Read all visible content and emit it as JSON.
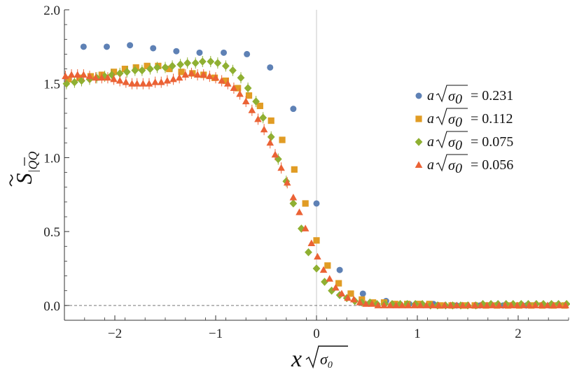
{
  "chart_data": {
    "type": "scatter",
    "title": "",
    "xlabel": "x√σ₀",
    "ylabel": "S̃|QQ̄",
    "xlim": [
      -2.5,
      2.5
    ],
    "ylim": [
      -0.1,
      2.0
    ],
    "x_ticks": [
      -2,
      -1,
      0,
      1,
      2
    ],
    "x_tick_labels": [
      "−2",
      "−1",
      "0",
      "1",
      "2"
    ],
    "y_ticks": [
      0.0,
      0.5,
      1.0,
      1.5,
      2.0
    ],
    "y_tick_labels": [
      "0.0",
      "0.5",
      "1.0",
      "1.5",
      "2.0"
    ],
    "reference_lines": {
      "horizontal_dashed_y": 0.0,
      "vertical_solid_x": 0.0
    },
    "legend_position": "right",
    "series": [
      {
        "name": "a√σ₀ = 0.231",
        "label_prefix": "a",
        "label_value": "= 0.231",
        "marker": "circle",
        "color": "#5e81b5",
        "x": [
          -2.31,
          -2.08,
          -1.85,
          -1.62,
          -1.39,
          -1.16,
          -0.92,
          -0.69,
          -0.46,
          -0.23,
          0.0,
          0.23,
          0.46,
          0.69,
          0.92,
          1.16,
          1.39,
          1.62,
          1.85,
          2.08,
          2.31
        ],
        "y": [
          1.75,
          1.75,
          1.76,
          1.74,
          1.72,
          1.71,
          1.71,
          1.7,
          1.61,
          1.33,
          0.69,
          0.24,
          0.08,
          0.03,
          0.01,
          0.01,
          0.0,
          0.0,
          0.0,
          0.0,
          0.0
        ]
      },
      {
        "name": "a√σ₀ = 0.112",
        "label_prefix": "a",
        "label_value": "= 0.112",
        "marker": "square",
        "color": "#e19c24",
        "x": [
          -2.46,
          -2.35,
          -2.24,
          -2.13,
          -2.01,
          -1.9,
          -1.79,
          -1.68,
          -1.57,
          -1.46,
          -1.34,
          -1.23,
          -1.12,
          -1.01,
          -0.9,
          -0.78,
          -0.67,
          -0.56,
          -0.45,
          -0.34,
          -0.22,
          -0.11,
          0.0,
          0.11,
          0.22,
          0.34,
          0.45,
          0.56,
          0.67,
          0.78,
          0.9,
          1.01,
          1.12,
          1.23,
          1.34,
          1.46,
          1.57,
          1.68,
          1.79,
          1.9,
          2.01,
          2.13,
          2.24,
          2.35,
          2.46
        ],
        "y": [
          1.53,
          1.54,
          1.55,
          1.56,
          1.58,
          1.6,
          1.61,
          1.62,
          1.62,
          1.6,
          1.58,
          1.57,
          1.56,
          1.54,
          1.52,
          1.47,
          1.42,
          1.35,
          1.25,
          1.12,
          0.92,
          0.69,
          0.44,
          0.27,
          0.15,
          0.08,
          0.04,
          0.02,
          0.02,
          0.01,
          0.01,
          0.01,
          0.01,
          0.0,
          0.0,
          0.0,
          0.0,
          0.0,
          0.0,
          0.0,
          0.0,
          0.0,
          0.0,
          0.0,
          0.0
        ]
      },
      {
        "name": "a√σ₀ = 0.075",
        "label_prefix": "a",
        "label_value": "= 0.075",
        "marker": "diamond",
        "color": "#8fb032",
        "x": [
          -2.48,
          -2.4,
          -2.33,
          -2.25,
          -2.18,
          -2.1,
          -2.03,
          -1.95,
          -1.88,
          -1.8,
          -1.73,
          -1.65,
          -1.58,
          -1.5,
          -1.43,
          -1.35,
          -1.28,
          -1.2,
          -1.13,
          -1.05,
          -0.98,
          -0.9,
          -0.83,
          -0.75,
          -0.68,
          -0.6,
          -0.53,
          -0.45,
          -0.38,
          -0.3,
          -0.23,
          -0.15,
          -0.08,
          0.0,
          0.08,
          0.15,
          0.23,
          0.3,
          0.38,
          0.45,
          0.53,
          0.6,
          0.68,
          0.75,
          0.83,
          0.9,
          0.98,
          1.05,
          1.13,
          1.2,
          1.28,
          1.35,
          1.43,
          1.5,
          1.58,
          1.65,
          1.73,
          1.8,
          1.88,
          1.95,
          2.03,
          2.1,
          2.18,
          2.25,
          2.33,
          2.4,
          2.48
        ],
        "y": [
          1.5,
          1.51,
          1.52,
          1.53,
          1.54,
          1.55,
          1.56,
          1.57,
          1.58,
          1.59,
          1.59,
          1.6,
          1.61,
          1.61,
          1.62,
          1.63,
          1.64,
          1.64,
          1.65,
          1.65,
          1.64,
          1.62,
          1.59,
          1.54,
          1.47,
          1.38,
          1.27,
          1.14,
          0.99,
          0.84,
          0.69,
          0.52,
          0.36,
          0.25,
          0.16,
          0.1,
          0.07,
          0.05,
          0.03,
          0.02,
          0.02,
          0.01,
          0.01,
          0.01,
          0.01,
          0.01,
          0.01,
          0.01,
          0.0,
          0.0,
          0.0,
          0.0,
          0.0,
          0.0,
          0.0,
          0.01,
          0.01,
          0.01,
          0.01,
          0.01,
          0.01,
          0.01,
          0.01,
          0.01,
          0.01,
          0.01,
          0.01
        ]
      },
      {
        "name": "a√σ₀ = 0.056",
        "label_prefix": "a",
        "label_value": "= 0.056",
        "marker": "triangle",
        "color": "#eb6235",
        "x": [
          -2.49,
          -2.43,
          -2.37,
          -2.31,
          -2.25,
          -2.19,
          -2.13,
          -2.07,
          -2.01,
          -1.95,
          -1.89,
          -1.83,
          -1.78,
          -1.72,
          -1.66,
          -1.6,
          -1.54,
          -1.48,
          -1.42,
          -1.36,
          -1.3,
          -1.24,
          -1.18,
          -1.12,
          -1.06,
          -1.0,
          -0.94,
          -0.88,
          -0.82,
          -0.76,
          -0.7,
          -0.64,
          -0.58,
          -0.52,
          -0.46,
          -0.41,
          -0.35,
          -0.29,
          -0.23,
          -0.17,
          -0.11,
          -0.05,
          0.01,
          0.07,
          0.13,
          0.19,
          0.25,
          0.31,
          0.37,
          0.43,
          0.49,
          0.55,
          0.61,
          0.67,
          0.73,
          0.79,
          0.85,
          0.91,
          0.97,
          1.03,
          1.09,
          1.15,
          1.21,
          1.27,
          1.33,
          1.39,
          1.45,
          1.51,
          1.57,
          1.63,
          1.69,
          1.75,
          1.81,
          1.87,
          1.93,
          1.99,
          2.05,
          2.11,
          2.17,
          2.23,
          2.29,
          2.35,
          2.41,
          2.47
        ],
        "y": [
          1.55,
          1.56,
          1.56,
          1.56,
          1.55,
          1.54,
          1.54,
          1.54,
          1.53,
          1.52,
          1.51,
          1.5,
          1.5,
          1.5,
          1.5,
          1.51,
          1.51,
          1.52,
          1.53,
          1.54,
          1.56,
          1.57,
          1.56,
          1.56,
          1.55,
          1.54,
          1.52,
          1.5,
          1.47,
          1.43,
          1.38,
          1.32,
          1.26,
          1.19,
          1.1,
          1.02,
          0.93,
          0.83,
          0.73,
          0.63,
          0.52,
          0.42,
          0.33,
          0.24,
          0.18,
          0.12,
          0.08,
          0.05,
          0.04,
          0.02,
          0.01,
          0.01,
          0.0,
          0.0,
          0.0,
          0.0,
          0.0,
          0.0,
          0.0,
          0.0,
          0.0,
          0.0,
          0.0,
          0.0,
          0.0,
          0.0,
          0.0,
          0.0,
          0.0,
          0.0,
          0.0,
          0.0,
          0.0,
          0.0,
          0.0,
          0.0,
          0.0,
          0.0,
          0.0,
          0.0,
          0.0,
          0.0,
          0.0,
          0.0
        ]
      }
    ]
  }
}
